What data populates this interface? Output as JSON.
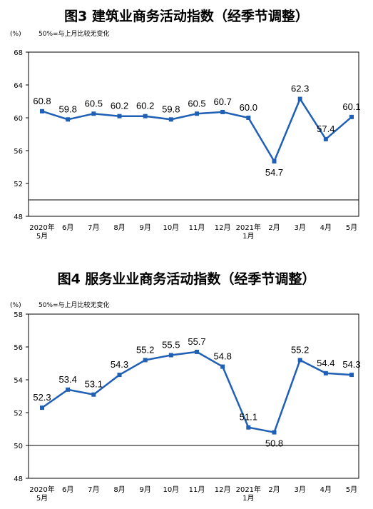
{
  "charts": {
    "chart1": {
      "title": "图3  建筑业商务活动指数（经季节调整）",
      "unit": "(%)",
      "note": "50%=与上月比较无变化"
    },
    "chart2": {
      "title": "图4  服务业业商务活动指数（经季节调整）",
      "unit": "(%)",
      "note": "50%=与上月比较无变化"
    }
  },
  "colors": {
    "line": "#1f5fb4",
    "axis": "#000000"
  },
  "chart_data": [
    {
      "type": "line",
      "title": "图3  建筑业商务活动指数（经季节调整）",
      "categories": [
        "2020年\n5月",
        "6月",
        "7月",
        "8月",
        "9月",
        "10月",
        "11月",
        "12月",
        "2021年\n1月",
        "2月",
        "3月",
        "4月",
        "5月"
      ],
      "values": [
        60.8,
        59.8,
        60.5,
        60.2,
        60.2,
        59.8,
        60.5,
        60.7,
        60.0,
        54.7,
        62.3,
        57.4,
        60.1
      ],
      "ylim": [
        48,
        68
      ],
      "yticks": [
        48,
        52,
        56,
        60,
        64,
        68
      ],
      "reference_line": 50,
      "ylabel": "(%)",
      "grid": false
    },
    {
      "type": "line",
      "title": "图4  服务业业商务活动指数（经季节调整）",
      "categories": [
        "2020年\n5月",
        "6月",
        "7月",
        "8月",
        "9月",
        "10月",
        "11月",
        "12月",
        "2021年\n1月",
        "2月",
        "3月",
        "4月",
        "5月"
      ],
      "values": [
        52.3,
        53.4,
        53.1,
        54.3,
        55.2,
        55.5,
        55.7,
        54.8,
        51.1,
        50.8,
        55.2,
        54.4,
        54.3
      ],
      "ylim": [
        48,
        58
      ],
      "yticks": [
        48,
        50,
        52,
        54,
        56,
        58
      ],
      "reference_line": 50,
      "ylabel": "(%)",
      "grid": false
    }
  ]
}
